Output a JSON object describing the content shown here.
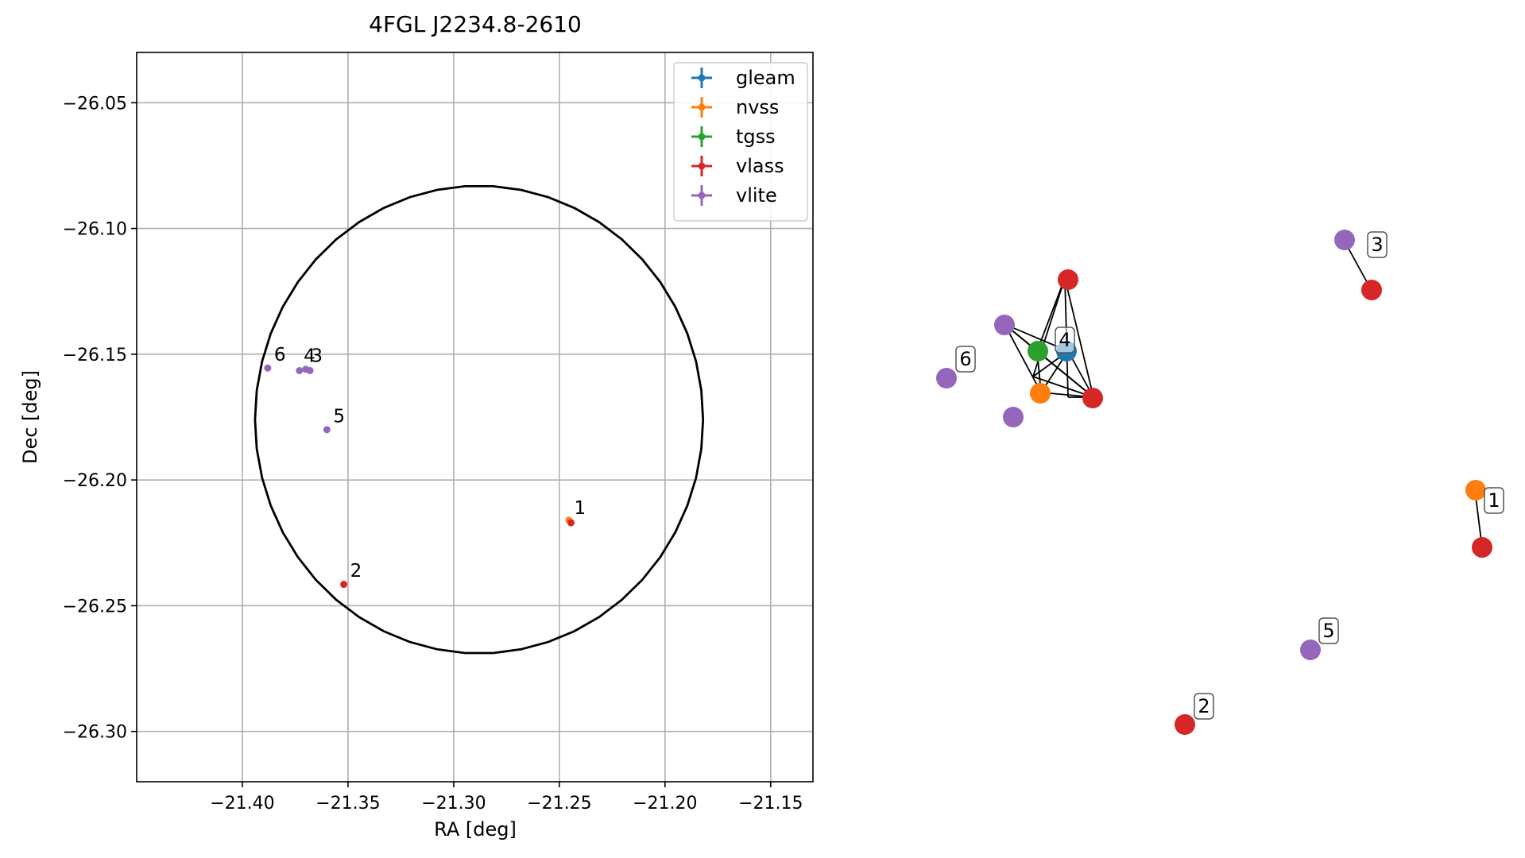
{
  "chart_data": [
    {
      "type": "scatter",
      "title": "4FGL J2234.8-2610",
      "xlabel": "RA [deg]",
      "ylabel": "Dec [deg]",
      "xlim": [
        -21.45,
        -21.13
      ],
      "ylim": [
        -26.32,
        -26.03
      ],
      "xticks": [
        -21.4,
        -21.35,
        -21.3,
        -21.25,
        -21.2,
        -21.15
      ],
      "xtick_labels": [
        "−21.40",
        "−21.35",
        "−21.30",
        "−21.25",
        "−21.20",
        "−21.15"
      ],
      "yticks": [
        -26.05,
        -26.1,
        -26.15,
        -26.2,
        -26.25,
        -26.3
      ],
      "ytick_labels": [
        "−26.05",
        "−26.10",
        "−26.15",
        "−26.20",
        "−26.25",
        "−26.30"
      ],
      "grid": true,
      "legend_position": "upper right",
      "ellipse": {
        "center": [
          -21.288,
          -26.176
        ],
        "radius_ra": 0.106,
        "radius_dec": 0.093
      },
      "series": [
        {
          "name": "gleam",
          "color": "#1f77b4",
          "points": []
        },
        {
          "name": "nvss",
          "color": "#ff7f0e",
          "points": [
            {
              "x": -21.2455,
              "y": -26.216
            }
          ]
        },
        {
          "name": "tgss",
          "color": "#2ca02c",
          "points": []
        },
        {
          "name": "vlass",
          "color": "#d62728",
          "points": [
            {
              "x": -21.2445,
              "y": -26.217
            },
            {
              "x": -21.352,
              "y": -26.2415
            }
          ]
        },
        {
          "name": "vlite",
          "color": "#9467bd",
          "points": [
            {
              "x": -21.388,
              "y": -26.1555
            },
            {
              "x": -21.373,
              "y": -26.1565
            },
            {
              "x": -21.37,
              "y": -26.156
            },
            {
              "x": -21.368,
              "y": -26.1565
            },
            {
              "x": -21.36,
              "y": -26.18
            }
          ]
        }
      ],
      "annotations": [
        {
          "text": "1",
          "x": -21.243,
          "y": -26.2135
        },
        {
          "text": "2",
          "x": -21.349,
          "y": -26.2385
        },
        {
          "text": "4",
          "x": -21.371,
          "y": -26.153
        },
        {
          "text": "3",
          "x": -21.3675,
          "y": -26.153
        },
        {
          "text": "5",
          "x": -21.357,
          "y": -26.177
        },
        {
          "text": "6",
          "x": -21.385,
          "y": -26.1525
        }
      ]
    },
    {
      "type": "network",
      "node_labels": [
        "1",
        "2",
        "3",
        "4",
        "5",
        "6"
      ]
    }
  ]
}
